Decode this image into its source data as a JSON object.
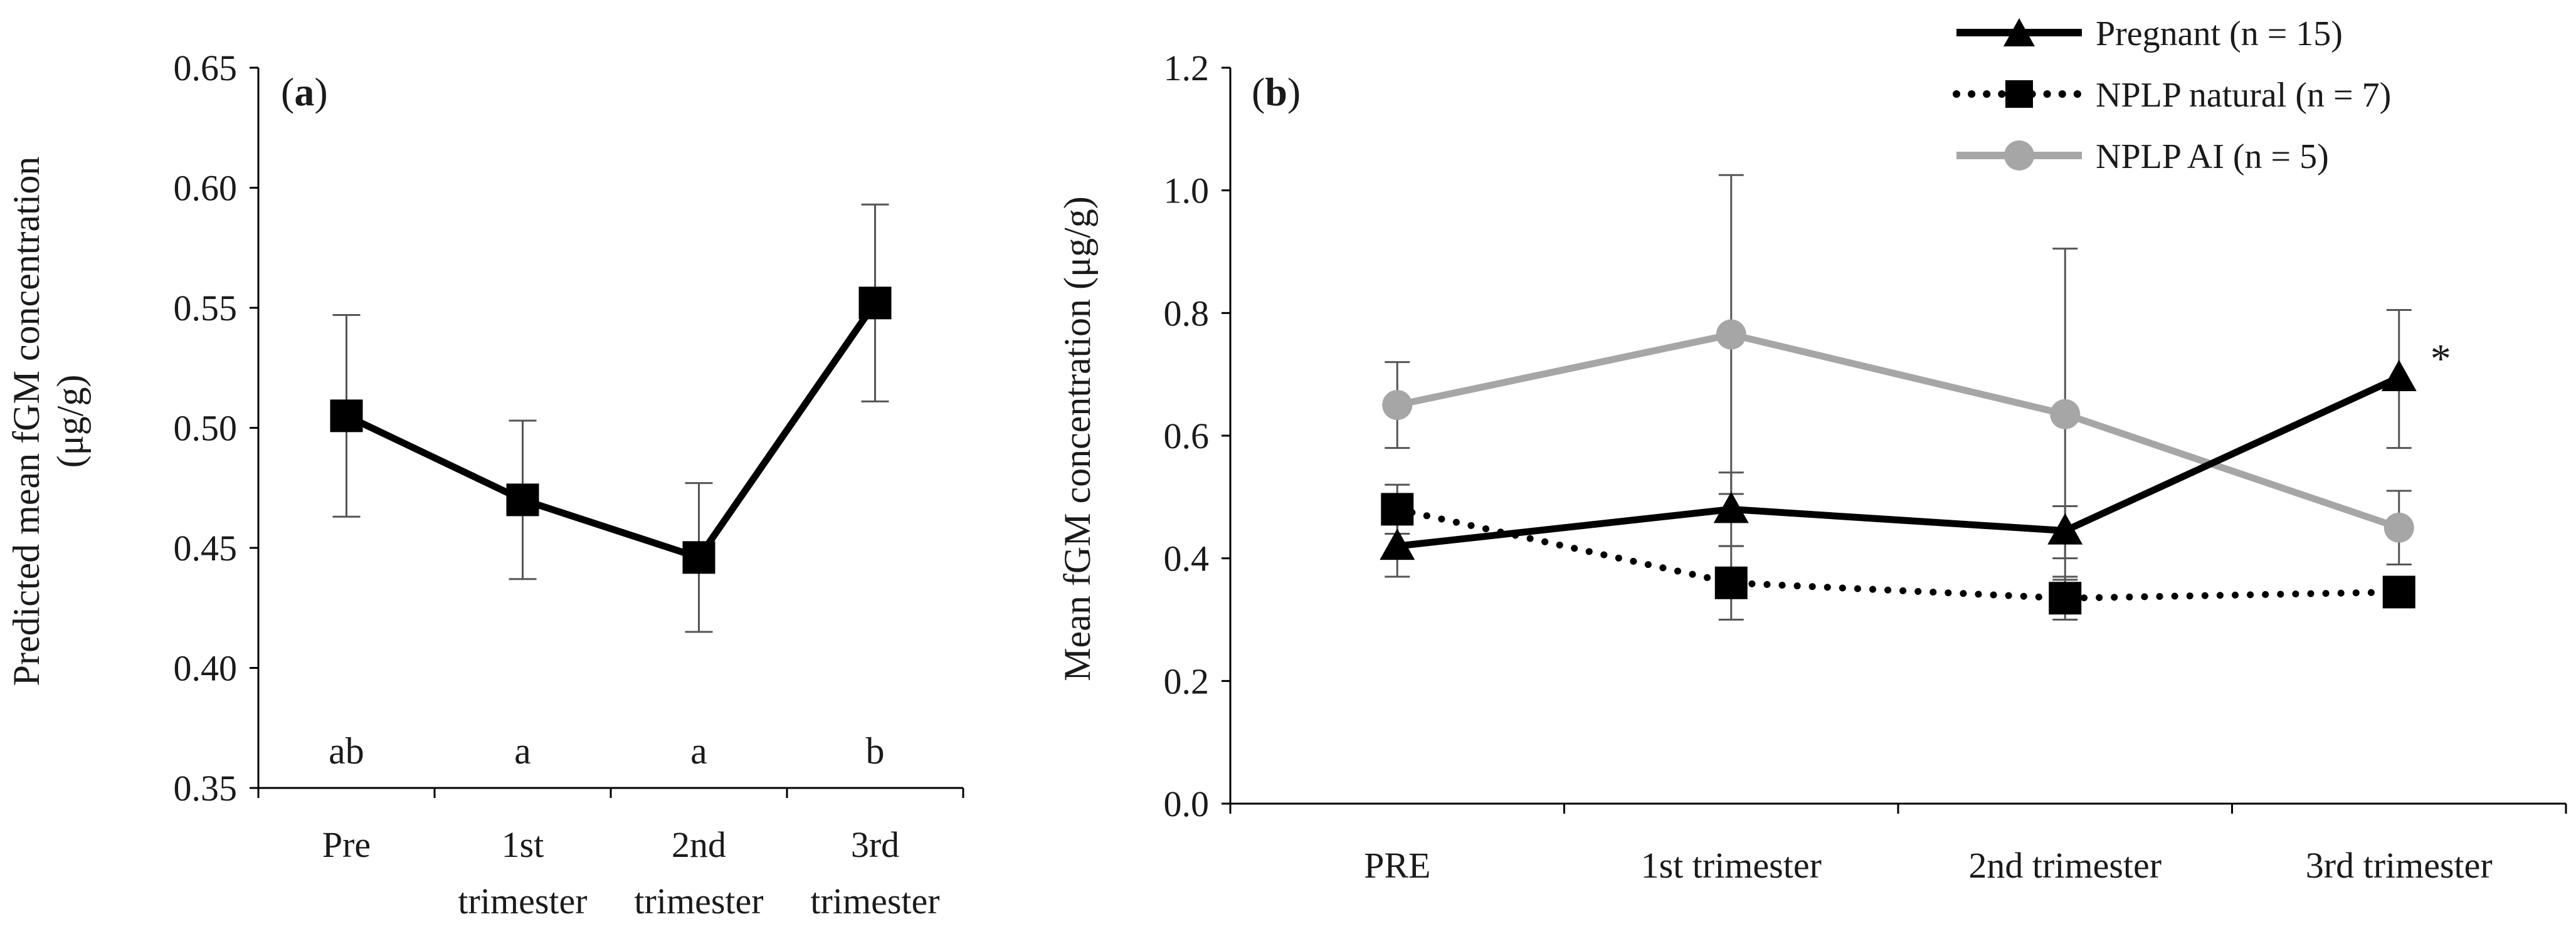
{
  "chart_data": [
    {
      "panel_label": "(a)",
      "panel_letter": "a",
      "type": "line",
      "title": "",
      "ylabel_line1": "Predicted mean fGM concentration",
      "ylabel_line2": "(μg/g)",
      "ylim": [
        0.35,
        0.65
      ],
      "yticks": [
        0.35,
        0.4,
        0.45,
        0.5,
        0.55,
        0.6,
        0.65
      ],
      "ytick_labels": [
        "0.35",
        "0.40",
        "0.45",
        "0.50",
        "0.55",
        "0.60",
        "0.65"
      ],
      "categories": [
        {
          "line1": "Pre",
          "line2": ""
        },
        {
          "line1": "1st",
          "line2": "trimester"
        },
        {
          "line1": "2nd",
          "line2": "trimester"
        },
        {
          "line1": "3rd",
          "line2": "trimester"
        }
      ],
      "series": [
        {
          "name": "Predicted mean",
          "marker": "square",
          "color": "#000000",
          "values": [
            0.505,
            0.47,
            0.446,
            0.552
          ],
          "err_low": [
            0.463,
            0.437,
            0.415,
            0.511
          ],
          "err_high": [
            0.547,
            0.503,
            0.477,
            0.593
          ]
        }
      ],
      "significance_letters": [
        "ab",
        "a",
        "a",
        "b"
      ]
    },
    {
      "panel_label": "(b)",
      "panel_letter": "b",
      "type": "line",
      "title": "",
      "ylabel": "Mean fGM concentration (μg/g)",
      "ylim": [
        0.0,
        1.2
      ],
      "yticks": [
        0.0,
        0.2,
        0.4,
        0.6,
        0.8,
        1.0,
        1.2
      ],
      "ytick_labels": [
        "0.0",
        "0.2",
        "0.4",
        "0.6",
        "0.8",
        "1.0",
        "1.2"
      ],
      "categories": [
        "PRE",
        "1st trimester",
        "2nd trimester",
        "3rd trimester"
      ],
      "legend_position": "top-right",
      "series": [
        {
          "name": "Pregnant (n = 15)",
          "marker": "triangle",
          "line_style": "solid",
          "color": "#000000",
          "values": [
            0.42,
            0.48,
            0.445,
            0.695
          ],
          "err_low": [
            0.37,
            0.42,
            0.4,
            0.58
          ],
          "err_high": [
            0.47,
            0.54,
            0.485,
            0.805
          ]
        },
        {
          "name": "NPLP natural (n = 7)",
          "marker": "square",
          "line_style": "dotted",
          "color": "#000000",
          "values": [
            0.48,
            0.36,
            0.335,
            0.345
          ],
          "err_low": [
            0.44,
            0.3,
            0.3,
            0.32
          ],
          "err_high": [
            0.52,
            0.42,
            0.37,
            0.37
          ]
        },
        {
          "name": "NPLP AI (n = 5)",
          "marker": "circle",
          "line_style": "solid",
          "color": "#a6a6a6",
          "values": [
            0.65,
            0.765,
            0.635,
            0.45
          ],
          "err_low": [
            0.58,
            0.505,
            0.365,
            0.39
          ],
          "err_high": [
            0.72,
            1.025,
            0.905,
            0.51
          ]
        }
      ],
      "annotations": [
        {
          "series": "Pregnant (n = 15)",
          "category": "3rd trimester",
          "text": "*"
        }
      ]
    }
  ]
}
